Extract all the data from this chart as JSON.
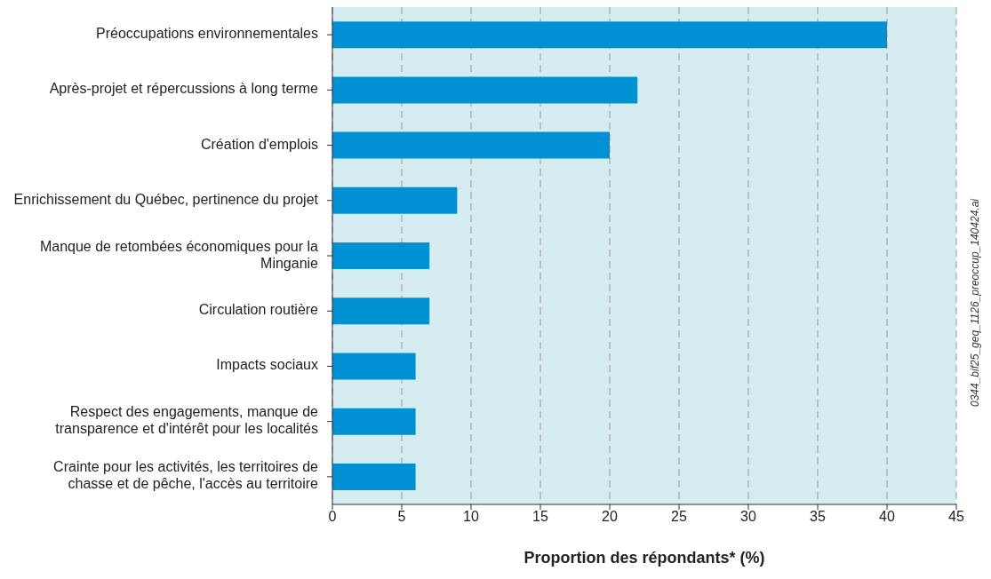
{
  "chart_data": {
    "type": "bar",
    "orientation": "horizontal",
    "categories": [
      "Préoccupations environnementales",
      "Après-projet et répercussions à long terme",
      "Création d'emplois",
      "Enrichissement du Québec, pertinence du projet",
      "Manque de retombées économiques pour la Minganie",
      "Circulation routière",
      "Impacts sociaux",
      "Respect des engagements, manque de transparence et d'intérêt pour les localités",
      "Crainte pour les activités, les territoires de chasse et de pêche, l'accès au territoire"
    ],
    "values": [
      40,
      22,
      20,
      9,
      7,
      7,
      6,
      6,
      6
    ],
    "color": "#0090d4",
    "xlabel": "Proportion des répondants* (%)",
    "xlim": [
      0,
      45
    ],
    "xticks": [
      0,
      5,
      10,
      15,
      20,
      25,
      30,
      35,
      40,
      45
    ],
    "grid": "x",
    "annotations": [
      "0344_bif25_geq_1126_preoccup_140424.ai"
    ]
  }
}
